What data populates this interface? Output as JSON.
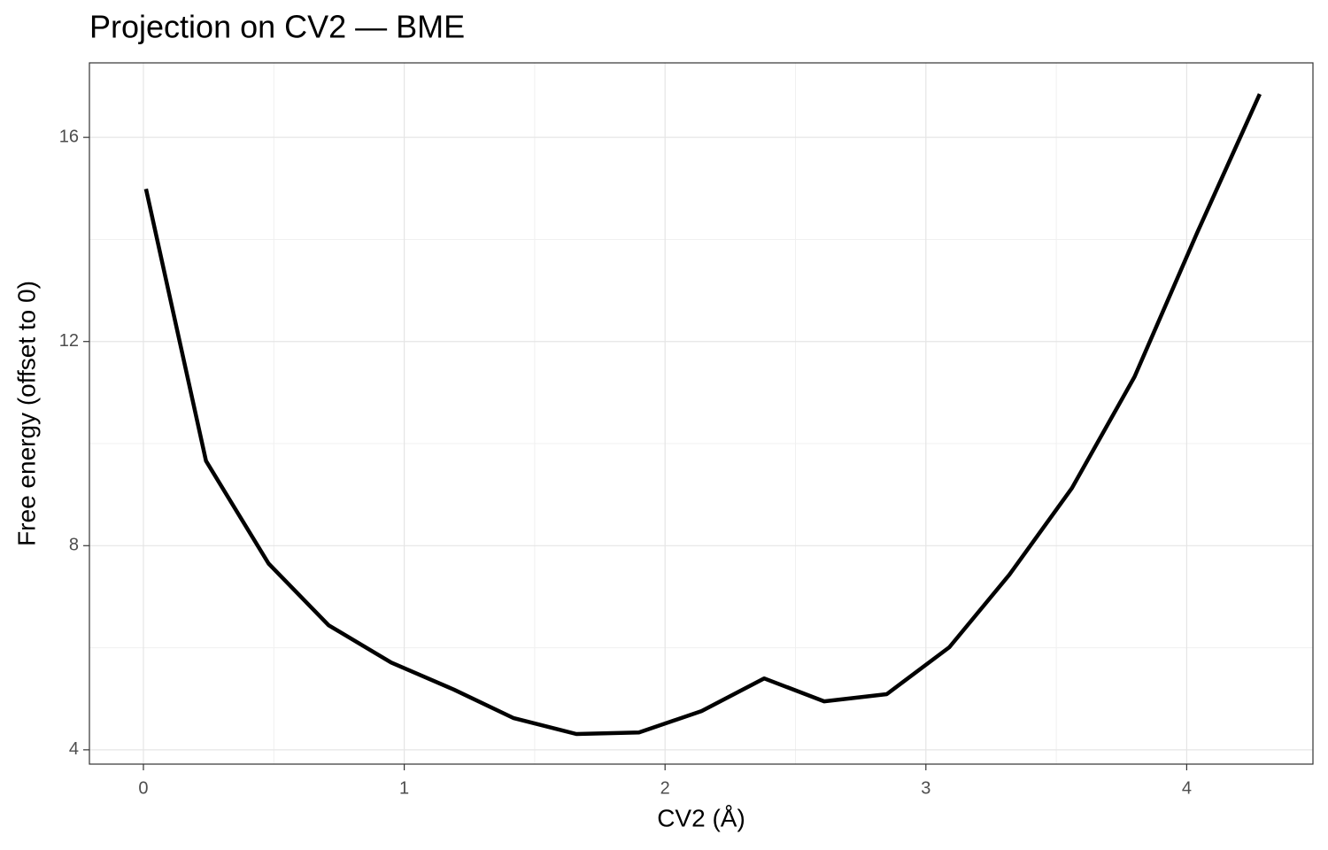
{
  "chart_data": {
    "type": "line",
    "title": "Projection on CV2 — BME",
    "x_label": "CV2 (Å)",
    "y_label": "Free energy (offset to 0)",
    "x": [
      0.01,
      0.24,
      0.48,
      0.71,
      0.95,
      1.19,
      1.42,
      1.66,
      1.9,
      2.14,
      2.38,
      2.61,
      2.85,
      3.09,
      3.32,
      3.56,
      3.8,
      4.04,
      4.28
    ],
    "series": [
      {
        "name": "BME",
        "color": "#000000",
        "values": [
          14.99,
          9.66,
          7.65,
          6.44,
          5.71,
          5.18,
          4.62,
          4.31,
          4.34,
          4.76,
          5.4,
          4.95,
          5.09,
          6.01,
          7.43,
          9.13,
          11.31,
          14.13,
          16.85
        ]
      }
    ],
    "xlim": [
      -0.207,
      4.484
    ],
    "ylim": [
      3.72,
      17.46
    ],
    "xticks": [
      0,
      1,
      2,
      3,
      4
    ],
    "yticks": [
      4,
      8,
      12,
      16
    ],
    "grid": true
  }
}
